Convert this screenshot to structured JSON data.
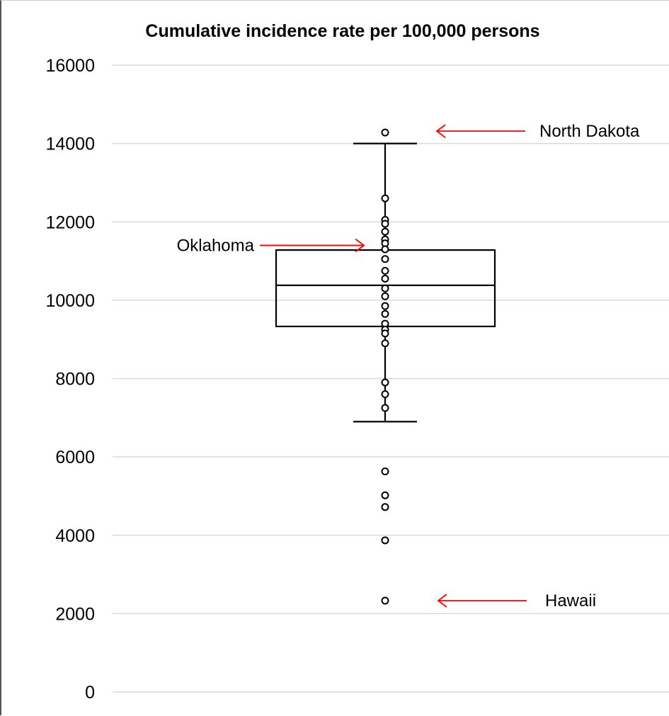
{
  "chart_data": {
    "type": "box",
    "title": "Cumulative incidence rate per 100,000 persons",
    "xlabel": "",
    "ylabel": "",
    "ylim": [
      0,
      16000
    ],
    "y_ticks": [
      "0",
      "2000",
      "4000",
      "6000",
      "8000",
      "10000",
      "12000",
      "14000",
      "16000"
    ],
    "grid": true,
    "box": {
      "whisker_low": 6900,
      "q1": 9330,
      "median": 10380,
      "q3": 11280,
      "whisker_high": 14000
    },
    "points": [
      14280,
      12600,
      12050,
      11950,
      11750,
      11550,
      11450,
      11300,
      11050,
      10750,
      10550,
      10300,
      10100,
      9850,
      9650,
      9400,
      9250,
      9150,
      8900,
      7900,
      7600,
      7250,
      5630,
      5020,
      4720,
      3870,
      2330
    ],
    "annotations": [
      {
        "label": "North Dakota",
        "value": 14280,
        "arrow_color": "#ff0000"
      },
      {
        "label": "Oklahoma",
        "value": 11400,
        "arrow_color": "#ff0000"
      },
      {
        "label": "Hawaii",
        "value": 2330,
        "arrow_color": "#ff0000"
      }
    ],
    "colors": {
      "box": "#000000",
      "grid": "#d9d9d9",
      "arrow": "#ff0000"
    }
  }
}
